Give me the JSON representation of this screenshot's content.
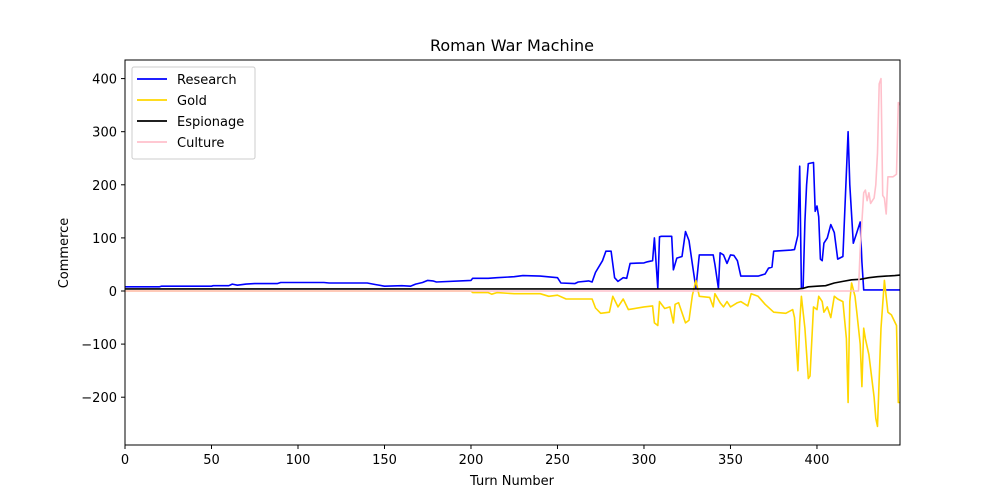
{
  "chart_data": {
    "type": "line",
    "title": "Roman War Machine",
    "xlabel": "Turn Number",
    "ylabel": "Commerce",
    "xlim": [
      0,
      448
    ],
    "ylim": [
      -290,
      435
    ],
    "xticks": [
      0,
      50,
      100,
      150,
      200,
      250,
      300,
      350,
      400
    ],
    "yticks": [
      -200,
      -100,
      0,
      100,
      200,
      300,
      400
    ],
    "ytick_labels": [
      "−200",
      "−100",
      "0",
      "100",
      "200",
      "300",
      "400"
    ],
    "grid": false,
    "legend": "top-left",
    "series": [
      {
        "name": "Research",
        "color": "#0000ff",
        "points": [
          [
            0,
            8
          ],
          [
            20,
            8
          ],
          [
            21,
            9
          ],
          [
            50,
            9
          ],
          [
            51,
            10
          ],
          [
            60,
            10
          ],
          [
            62,
            13
          ],
          [
            65,
            11
          ],
          [
            70,
            13
          ],
          [
            75,
            14
          ],
          [
            88,
            14
          ],
          [
            90,
            16
          ],
          [
            115,
            16
          ],
          [
            118,
            15
          ],
          [
            140,
            15
          ],
          [
            145,
            12
          ],
          [
            150,
            9
          ],
          [
            160,
            10
          ],
          [
            165,
            9
          ],
          [
            168,
            13
          ],
          [
            172,
            16
          ],
          [
            175,
            20
          ],
          [
            178,
            19
          ],
          [
            180,
            17
          ],
          [
            200,
            20
          ],
          [
            201,
            24
          ],
          [
            210,
            24
          ],
          [
            215,
            25
          ],
          [
            225,
            27
          ],
          [
            230,
            29
          ],
          [
            240,
            28
          ],
          [
            250,
            25
          ],
          [
            252,
            15
          ],
          [
            260,
            14
          ],
          [
            262,
            17
          ],
          [
            268,
            19
          ],
          [
            270,
            17
          ],
          [
            272,
            35
          ],
          [
            276,
            57
          ],
          [
            278,
            75
          ],
          [
            281,
            75
          ],
          [
            283,
            25
          ],
          [
            285,
            18
          ],
          [
            288,
            25
          ],
          [
            290,
            24
          ],
          [
            292,
            52
          ],
          [
            300,
            53
          ],
          [
            302,
            55
          ],
          [
            305,
            57
          ],
          [
            306,
            100
          ],
          [
            308,
            5
          ],
          [
            309,
            102
          ],
          [
            310,
            103
          ],
          [
            316,
            103
          ],
          [
            317,
            40
          ],
          [
            319,
            62
          ],
          [
            322,
            65
          ],
          [
            324,
            112
          ],
          [
            326,
            95
          ],
          [
            328,
            50
          ],
          [
            330,
            5
          ],
          [
            332,
            68
          ],
          [
            340,
            68
          ],
          [
            341,
            50
          ],
          [
            343,
            5
          ],
          [
            344,
            72
          ],
          [
            346,
            68
          ],
          [
            348,
            52
          ],
          [
            350,
            68
          ],
          [
            352,
            67
          ],
          [
            354,
            57
          ],
          [
            356,
            28
          ],
          [
            366,
            28
          ],
          [
            370,
            32
          ],
          [
            372,
            43
          ],
          [
            374,
            45
          ],
          [
            375,
            75
          ],
          [
            385,
            77
          ],
          [
            387,
            78
          ],
          [
            389,
            105
          ],
          [
            390,
            235
          ],
          [
            391,
            5
          ],
          [
            392,
            5
          ],
          [
            393,
            130
          ],
          [
            394,
            200
          ],
          [
            395,
            240
          ],
          [
            398,
            242
          ],
          [
            399,
            150
          ],
          [
            400,
            160
          ],
          [
            401,
            140
          ],
          [
            402,
            60
          ],
          [
            403,
            57
          ],
          [
            404,
            90
          ],
          [
            406,
            100
          ],
          [
            408,
            125
          ],
          [
            410,
            110
          ],
          [
            412,
            60
          ],
          [
            415,
            65
          ],
          [
            418,
            300
          ],
          [
            419,
            200
          ],
          [
            421,
            90
          ],
          [
            423,
            110
          ],
          [
            425,
            130
          ],
          [
            426,
            55
          ],
          [
            427,
            2
          ],
          [
            448,
            2
          ]
        ]
      },
      {
        "name": "Gold",
        "color": "#ffd700",
        "points": [
          [
            0,
            0
          ],
          [
            200,
            0
          ],
          [
            201,
            -3
          ],
          [
            210,
            -3
          ],
          [
            212,
            -6
          ],
          [
            215,
            -3
          ],
          [
            225,
            -5
          ],
          [
            240,
            -5
          ],
          [
            245,
            -10
          ],
          [
            250,
            -8
          ],
          [
            255,
            -15
          ],
          [
            270,
            -15
          ],
          [
            272,
            -32
          ],
          [
            275,
            -42
          ],
          [
            280,
            -40
          ],
          [
            282,
            -10
          ],
          [
            285,
            -30
          ],
          [
            288,
            -15
          ],
          [
            291,
            -35
          ],
          [
            300,
            -30
          ],
          [
            305,
            -28
          ],
          [
            306,
            -60
          ],
          [
            308,
            -65
          ],
          [
            309,
            -20
          ],
          [
            312,
            -33
          ],
          [
            315,
            -30
          ],
          [
            317,
            -60
          ],
          [
            318,
            -25
          ],
          [
            320,
            -22
          ],
          [
            324,
            -60
          ],
          [
            326,
            -55
          ],
          [
            328,
            -8
          ],
          [
            330,
            20
          ],
          [
            332,
            -10
          ],
          [
            338,
            -12
          ],
          [
            340,
            -30
          ],
          [
            341,
            -5
          ],
          [
            344,
            -22
          ],
          [
            346,
            -30
          ],
          [
            348,
            -20
          ],
          [
            350,
            -30
          ],
          [
            354,
            -22
          ],
          [
            356,
            -20
          ],
          [
            360,
            -28
          ],
          [
            362,
            -5
          ],
          [
            366,
            -10
          ],
          [
            370,
            -25
          ],
          [
            375,
            -40
          ],
          [
            382,
            -42
          ],
          [
            386,
            -35
          ],
          [
            387,
            -50
          ],
          [
            389,
            -150
          ],
          [
            390,
            -60
          ],
          [
            391,
            -10
          ],
          [
            393,
            -70
          ],
          [
            395,
            -165
          ],
          [
            396,
            -160
          ],
          [
            398,
            -30
          ],
          [
            400,
            -35
          ],
          [
            401,
            -10
          ],
          [
            403,
            -20
          ],
          [
            404,
            -40
          ],
          [
            406,
            -30
          ],
          [
            408,
            -50
          ],
          [
            410,
            -10
          ],
          [
            412,
            -15
          ],
          [
            415,
            -20
          ],
          [
            417,
            -90
          ],
          [
            418,
            -210
          ],
          [
            419,
            -20
          ],
          [
            420,
            15
          ],
          [
            422,
            -10
          ],
          [
            423,
            -40
          ],
          [
            425,
            -100
          ],
          [
            426,
            -180
          ],
          [
            427,
            -70
          ],
          [
            428,
            -90
          ],
          [
            430,
            -120
          ],
          [
            433,
            -200
          ],
          [
            434,
            -240
          ],
          [
            435,
            -255
          ],
          [
            437,
            -70
          ],
          [
            439,
            20
          ],
          [
            441,
            -40
          ],
          [
            443,
            -45
          ],
          [
            446,
            -65
          ],
          [
            447,
            -210
          ],
          [
            448,
            -210
          ]
        ]
      },
      {
        "name": "Espionage",
        "color": "#000000",
        "points": [
          [
            0,
            4
          ],
          [
            389,
            4
          ],
          [
            392,
            5
          ],
          [
            395,
            8
          ],
          [
            400,
            9
          ],
          [
            405,
            10
          ],
          [
            410,
            15
          ],
          [
            415,
            18
          ],
          [
            420,
            21
          ],
          [
            425,
            22
          ],
          [
            430,
            25
          ],
          [
            435,
            27
          ],
          [
            440,
            28
          ],
          [
            445,
            29
          ],
          [
            448,
            30
          ]
        ]
      },
      {
        "name": "Culture",
        "color": "#ffc0cb",
        "points": [
          [
            0,
            0
          ],
          [
            20,
            0
          ],
          [
            424,
            0
          ],
          [
            425,
            80
          ],
          [
            426,
            130
          ],
          [
            427,
            185
          ],
          [
            428,
            190
          ],
          [
            429,
            170
          ],
          [
            430,
            185
          ],
          [
            431,
            165
          ],
          [
            432,
            170
          ],
          [
            433,
            175
          ],
          [
            434,
            200
          ],
          [
            435,
            260
          ],
          [
            436,
            390
          ],
          [
            437,
            400
          ],
          [
            438,
            180
          ],
          [
            439,
            175
          ],
          [
            440,
            145
          ],
          [
            441,
            215
          ],
          [
            444,
            215
          ],
          [
            446,
            220
          ],
          [
            447,
            355
          ],
          [
            448,
            350
          ]
        ]
      }
    ]
  }
}
